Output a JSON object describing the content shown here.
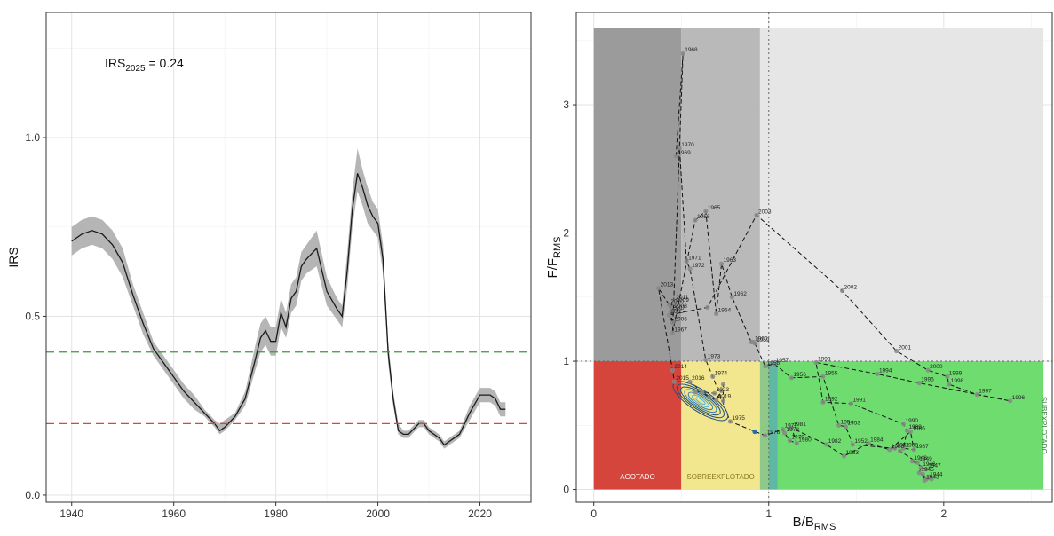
{
  "colors": {
    "irs_line": "#1a1a1a",
    "irs_band": "#b5b5b5",
    "green_ref": "#3a9a3a",
    "red_ref": "#e0462f",
    "agotado": "#d5453b",
    "sobreexplotado": "#f2e68f",
    "subexplotado": "#6fdc70",
    "dark_grey": "#9b9b9b",
    "mid_grey": "#b9b9b9",
    "light_grey": "#e6e6e6",
    "kobe_point": "#888888",
    "contour": "#1f4e79"
  },
  "chart_data": [
    {
      "type": "line",
      "ylabel": "IRS",
      "xlabel": "",
      "annotation": {
        "base": "IRS",
        "sub": "2025",
        "rest": " = 0.24"
      },
      "xlim": [
        1935,
        2030
      ],
      "ylim": [
        -0.02,
        1.35
      ],
      "xticks": [
        1940,
        1960,
        1980,
        2000,
        2020
      ],
      "xtick_labels": [
        "1940",
        "1960",
        "1980",
        "2000",
        "2020"
      ],
      "yticks": [
        0.0,
        0.5,
        1.0
      ],
      "ytick_labels": [
        "0.0",
        "0.5",
        "1.0"
      ],
      "grid": true,
      "reference_lines": [
        {
          "y": 0.4,
          "color": "green_ref",
          "style": "dashed"
        },
        {
          "y": 0.2,
          "color": "red_ref",
          "style": "dashed"
        }
      ],
      "series": [
        {
          "x": [
            1940,
            1942,
            1944,
            1946,
            1948,
            1950,
            1952,
            1954,
            1956,
            1958,
            1960,
            1962,
            1964,
            1966,
            1968,
            1969,
            1970,
            1972,
            1974,
            1976,
            1977,
            1978,
            1979,
            1980,
            1981,
            1982,
            1983,
            1984,
            1985,
            1986,
            1988,
            1990,
            1992,
            1993,
            1994,
            1995,
            1996,
            1997,
            1998,
            1999,
            2000,
            2001,
            2002,
            2003,
            2004,
            2005,
            2006,
            2008,
            2009,
            2010,
            2012,
            2013,
            2014,
            2016,
            2018,
            2020,
            2022,
            2023,
            2024,
            2025
          ],
          "y": [
            0.71,
            0.73,
            0.74,
            0.73,
            0.7,
            0.65,
            0.56,
            0.48,
            0.41,
            0.37,
            0.33,
            0.29,
            0.26,
            0.23,
            0.2,
            0.18,
            0.19,
            0.22,
            0.27,
            0.38,
            0.44,
            0.46,
            0.43,
            0.43,
            0.51,
            0.47,
            0.55,
            0.57,
            0.64,
            0.66,
            0.69,
            0.57,
            0.52,
            0.5,
            0.63,
            0.8,
            0.9,
            0.86,
            0.81,
            0.78,
            0.76,
            0.66,
            0.4,
            0.27,
            0.18,
            0.17,
            0.17,
            0.2,
            0.2,
            0.18,
            0.16,
            0.14,
            0.15,
            0.17,
            0.23,
            0.28,
            0.28,
            0.27,
            0.24,
            0.24
          ],
          "lower": [
            0.67,
            0.69,
            0.7,
            0.69,
            0.66,
            0.61,
            0.53,
            0.45,
            0.39,
            0.35,
            0.31,
            0.27,
            0.24,
            0.22,
            0.19,
            0.17,
            0.18,
            0.21,
            0.25,
            0.35,
            0.4,
            0.42,
            0.39,
            0.39,
            0.47,
            0.44,
            0.51,
            0.53,
            0.6,
            0.62,
            0.64,
            0.53,
            0.49,
            0.47,
            0.58,
            0.75,
            0.85,
            0.81,
            0.76,
            0.74,
            0.72,
            0.62,
            0.37,
            0.25,
            0.17,
            0.16,
            0.16,
            0.19,
            0.19,
            0.17,
            0.15,
            0.13,
            0.14,
            0.16,
            0.21,
            0.26,
            0.26,
            0.25,
            0.22,
            0.22
          ],
          "upper": [
            0.75,
            0.77,
            0.78,
            0.77,
            0.74,
            0.69,
            0.59,
            0.51,
            0.43,
            0.39,
            0.35,
            0.31,
            0.28,
            0.24,
            0.21,
            0.2,
            0.21,
            0.23,
            0.29,
            0.42,
            0.48,
            0.5,
            0.47,
            0.47,
            0.55,
            0.51,
            0.59,
            0.61,
            0.68,
            0.7,
            0.74,
            0.61,
            0.55,
            0.53,
            0.68,
            0.85,
            0.97,
            0.91,
            0.86,
            0.82,
            0.8,
            0.7,
            0.43,
            0.29,
            0.2,
            0.18,
            0.18,
            0.21,
            0.21,
            0.19,
            0.17,
            0.15,
            0.16,
            0.18,
            0.25,
            0.3,
            0.3,
            0.29,
            0.26,
            0.26
          ]
        }
      ]
    },
    {
      "type": "scatter",
      "xlabel": {
        "base": "B/B",
        "sub": "RMS"
      },
      "ylabel": {
        "base": "F/F",
        "sub": "RMS"
      },
      "xlim": [
        -0.1,
        2.62
      ],
      "ylim": [
        -0.1,
        3.72
      ],
      "xticks": [
        0,
        1,
        2
      ],
      "xtick_labels": [
        "0",
        "1",
        "2"
      ],
      "yticks": [
        0,
        1,
        2,
        3
      ],
      "ytick_labels": [
        "0",
        "1",
        "2",
        "3"
      ],
      "grid": true,
      "reference_lines": [
        {
          "x": 1.0,
          "style": "dotted"
        },
        {
          "y": 1.0,
          "style": "dotted"
        }
      ],
      "zones": [
        {
          "x": [
            0,
            0.5
          ],
          "y": [
            0,
            1
          ],
          "color": "agotado",
          "label": "AGOTADO"
        },
        {
          "x": [
            0.5,
            0.95
          ],
          "y": [
            0,
            1
          ],
          "color": "sobreexplotado",
          "label": "SOBREEXPLOTADO"
        },
        {
          "x": [
            0.95,
            2.57
          ],
          "y": [
            0,
            1
          ],
          "color": "subexplotado",
          "label": "SUBEXPLOTADO"
        },
        {
          "x": [
            0,
            0.5
          ],
          "y": [
            1,
            3.6
          ],
          "color": "dark_grey",
          "label": ""
        },
        {
          "x": [
            0.5,
            0.95
          ],
          "y": [
            1,
            3.6
          ],
          "color": "mid_grey",
          "label": ""
        },
        {
          "x": [
            0.95,
            2.57
          ],
          "y": [
            1,
            3.6
          ],
          "color": "light_grey",
          "label": ""
        }
      ],
      "points": [
        {
          "year": "1939",
          "x": 1.93,
          "y": 0.08
        },
        {
          "year": "1940",
          "x": 1.92,
          "y": 0.1
        },
        {
          "year": "1941",
          "x": 1.9,
          "y": 0.08
        },
        {
          "year": "1942",
          "x": 1.88,
          "y": 0.12
        },
        {
          "year": "1943",
          "x": 1.89,
          "y": 0.07
        },
        {
          "year": "1944",
          "x": 1.91,
          "y": 0.09
        },
        {
          "year": "1945",
          "x": 1.86,
          "y": 0.13
        },
        {
          "year": "1946",
          "x": 1.87,
          "y": 0.17
        },
        {
          "year": "1947",
          "x": 1.9,
          "y": 0.16
        },
        {
          "year": "1948",
          "x": 1.82,
          "y": 0.22
        },
        {
          "year": "1949",
          "x": 1.85,
          "y": 0.21
        },
        {
          "year": "1950",
          "x": 1.75,
          "y": 0.3
        },
        {
          "year": "1951",
          "x": 1.72,
          "y": 0.32
        },
        {
          "year": "1952",
          "x": 1.48,
          "y": 0.35
        },
        {
          "year": "1953",
          "x": 1.44,
          "y": 0.49
        },
        {
          "year": "1954",
          "x": 1.4,
          "y": 0.5
        },
        {
          "year": "1955",
          "x": 1.31,
          "y": 0.88
        },
        {
          "year": "1956",
          "x": 1.13,
          "y": 0.87
        },
        {
          "year": "1957",
          "x": 1.03,
          "y": 0.98
        },
        {
          "year": "1958",
          "x": 0.98,
          "y": 0.96
        },
        {
          "year": "1959",
          "x": 0.92,
          "y": 1.14
        },
        {
          "year": "1960",
          "x": 0.91,
          "y": 1.15
        },
        {
          "year": "1961",
          "x": 0.9,
          "y": 1.15
        },
        {
          "year": "1962",
          "x": 0.79,
          "y": 1.5
        },
        {
          "year": "1963",
          "x": 0.73,
          "y": 1.76
        },
        {
          "year": "1964",
          "x": 0.7,
          "y": 1.37
        },
        {
          "year": "1965",
          "x": 0.64,
          "y": 2.17
        },
        {
          "year": "1966",
          "x": 0.58,
          "y": 2.1
        },
        {
          "year": "1967",
          "x": 0.45,
          "y": 1.22
        },
        {
          "year": "1968",
          "x": 0.51,
          "y": 3.4
        },
        {
          "year": "1969",
          "x": 0.47,
          "y": 2.6
        },
        {
          "year": "1970",
          "x": 0.49,
          "y": 2.66
        },
        {
          "year": "1971",
          "x": 0.53,
          "y": 1.78
        },
        {
          "year": "1972",
          "x": 0.55,
          "y": 1.72
        },
        {
          "year": "1973",
          "x": 0.64,
          "y": 1.01
        },
        {
          "year": "1974",
          "x": 0.68,
          "y": 0.88
        },
        {
          "year": "1975",
          "x": 0.78,
          "y": 0.53
        },
        {
          "year": "1976",
          "x": 0.98,
          "y": 0.42
        },
        {
          "year": "1977",
          "x": 1.08,
          "y": 0.47
        },
        {
          "year": "1978",
          "x": 1.09,
          "y": 0.44
        },
        {
          "year": "1979",
          "x": 1.12,
          "y": 0.38
        },
        {
          "year": "1980",
          "x": 1.16,
          "y": 0.36
        },
        {
          "year": "1981",
          "x": 1.13,
          "y": 0.48
        },
        {
          "year": "1982",
          "x": 1.33,
          "y": 0.35
        },
        {
          "year": "1983",
          "x": 1.43,
          "y": 0.26
        },
        {
          "year": "1984",
          "x": 1.57,
          "y": 0.36
        },
        {
          "year": "1985",
          "x": 1.69,
          "y": 0.31
        },
        {
          "year": "1986",
          "x": 1.81,
          "y": 0.45
        },
        {
          "year": "1987",
          "x": 1.83,
          "y": 0.31
        },
        {
          "year": "1988",
          "x": 1.77,
          "y": 0.32
        },
        {
          "year": "1989",
          "x": 1.79,
          "y": 0.46
        },
        {
          "year": "1990",
          "x": 1.77,
          "y": 0.51
        },
        {
          "year": "1991",
          "x": 1.47,
          "y": 0.67
        },
        {
          "year": "1992",
          "x": 1.31,
          "y": 0.68
        },
        {
          "year": "1993",
          "x": 1.27,
          "y": 0.99
        },
        {
          "year": "1994",
          "x": 1.62,
          "y": 0.9
        },
        {
          "year": "1995",
          "x": 1.86,
          "y": 0.83
        },
        {
          "year": "1996",
          "x": 2.38,
          "y": 0.69
        },
        {
          "year": "1997",
          "x": 2.19,
          "y": 0.74
        },
        {
          "year": "1998",
          "x": 2.03,
          "y": 0.82
        },
        {
          "year": "1999",
          "x": 2.02,
          "y": 0.88
        },
        {
          "year": "2000",
          "x": 1.91,
          "y": 0.93
        },
        {
          "year": "2001",
          "x": 1.73,
          "y": 1.08
        },
        {
          "year": "2002",
          "x": 1.42,
          "y": 1.55
        },
        {
          "year": "2003",
          "x": 0.93,
          "y": 2.14
        },
        {
          "year": "2004",
          "x": 0.65,
          "y": 1.42
        },
        {
          "year": "2005",
          "x": 0.43,
          "y": 1.36
        },
        {
          "year": "2006",
          "x": 0.45,
          "y": 1.3
        },
        {
          "year": "2007",
          "x": 0.44,
          "y": 1.39
        },
        {
          "year": "2008",
          "x": 0.45,
          "y": 1.4
        },
        {
          "year": "2009",
          "x": 0.46,
          "y": 1.45
        },
        {
          "year": "2010",
          "x": 0.43,
          "y": 1.44
        },
        {
          "year": "2011",
          "x": 0.46,
          "y": 1.47
        },
        {
          "year": "2012",
          "x": 0.44,
          "y": 1.42
        },
        {
          "year": "2013",
          "x": 0.37,
          "y": 1.57
        },
        {
          "year": "2014",
          "x": 0.45,
          "y": 0.93
        },
        {
          "year": "2015",
          "x": 0.46,
          "y": 0.84
        },
        {
          "year": "2016",
          "x": 0.55,
          "y": 0.84
        },
        {
          "year": "2017",
          "x": 0.62,
          "y": 0.76
        },
        {
          "year": "2018",
          "x": 0.66,
          "y": 0.72
        },
        {
          "year": "2019",
          "x": 0.7,
          "y": 0.7
        },
        {
          "year": "2020",
          "x": 0.73,
          "y": 0.77
        },
        {
          "year": "2021",
          "x": 0.74,
          "y": 0.82
        },
        {
          "year": "2022",
          "x": 0.74,
          "y": 0.69
        },
        {
          "year": "2023",
          "x": 0.69,
          "y": 0.75
        },
        {
          "year": "2024",
          "x": 0.62,
          "y": 0.76
        },
        {
          "year": "2025",
          "x": 0.58,
          "y": 0.76
        }
      ],
      "shown_labels": [
        "1968",
        "1970",
        "1969",
        "1965",
        "1966",
        "2003",
        "1967",
        "1971",
        "1972",
        "1963",
        "1962",
        "1964",
        "2013",
        "2011",
        "2010",
        "2009",
        "2005",
        "2007",
        "2006",
        "2008",
        "1960",
        "1959",
        "1957",
        "1958",
        "2001",
        "2002",
        "1973",
        "1974",
        "1975",
        "2023",
        "2019",
        "2015",
        "2016",
        "2014",
        "1993",
        "1955",
        "1956",
        "1994",
        "2000",
        "1999",
        "1996",
        "1995",
        "1998",
        "1997",
        "1991",
        "1992",
        "1990",
        "1989",
        "1988",
        "1954",
        "1953",
        "1952",
        "1951",
        "1984",
        "1983",
        "1982",
        "1981",
        "1980",
        "1977",
        "1978",
        "1976",
        "1979",
        "1986",
        "1985",
        "1987",
        "1949",
        "1948",
        "1947",
        "1946",
        "1945",
        "1944",
        "1943"
      ],
      "current_point": {
        "x": 0.92,
        "y": 0.45
      },
      "confidence_contours": {
        "center": [
          0.61,
          0.69
        ],
        "color": "contour"
      }
    }
  ]
}
